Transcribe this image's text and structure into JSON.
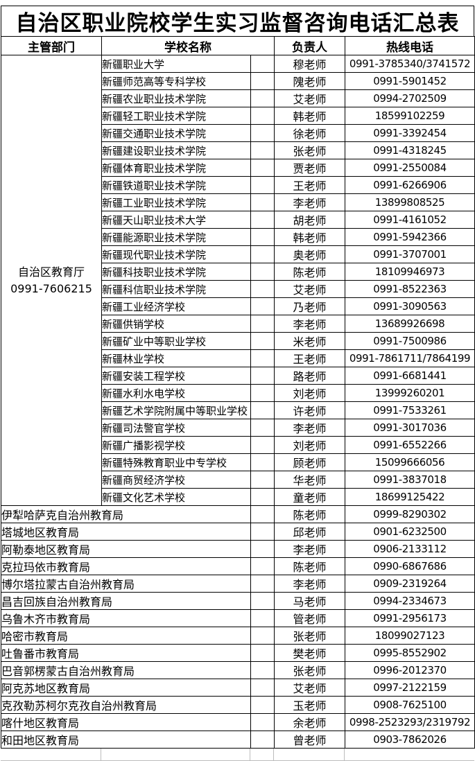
{
  "title": "自治区职业院校学生实习监督咨询电话汇总表",
  "table": {
    "headers": {
      "department": "主管部门",
      "school": "学校名称",
      "contact": "负责人",
      "hotline": "热线电话"
    },
    "department_cell": {
      "name": "自治区教育厅",
      "phone": "0991-7606215"
    },
    "school_rows": [
      {
        "school": "新疆职业大学",
        "contact": "穆老师",
        "hotline": "0991-3785340/3741572"
      },
      {
        "school": "新疆师范高等专科学校",
        "contact": "隗老师",
        "hotline": "0991-5901452"
      },
      {
        "school": "新疆农业职业技术学院",
        "contact": "艾老师",
        "hotline": "0994-2702509"
      },
      {
        "school": "新疆轻工职业技术学院",
        "contact": "韩老师",
        "hotline": "18599102259"
      },
      {
        "school": "新疆交通职业技术学院",
        "contact": "徐老师",
        "hotline": "0991-3392454"
      },
      {
        "school": "新疆建设职业技术学院",
        "contact": "张老师",
        "hotline": "0991-4318245"
      },
      {
        "school": "新疆体育职业技术学院",
        "contact": "贾老师",
        "hotline": "0991-2550084"
      },
      {
        "school": "新疆铁道职业技术学院",
        "contact": "王老师",
        "hotline": "0991-6266906"
      },
      {
        "school": "新疆工业职业技术学院",
        "contact": "李老师",
        "hotline": "13899808525"
      },
      {
        "school": "新疆天山职业技术大学",
        "contact": "胡老师",
        "hotline": "0991-4161052"
      },
      {
        "school": "新疆能源职业技术学院",
        "contact": "韩老师",
        "hotline": "0991-5942366"
      },
      {
        "school": "新疆现代职业技术学院",
        "contact": "奥老师",
        "hotline": "0991-3707001"
      },
      {
        "school": "新疆科技职业技术学院",
        "contact": "陈老师",
        "hotline": "18109946973"
      },
      {
        "school": "新疆科信职业技术学院",
        "contact": "艾老师",
        "hotline": "0991-8522363"
      },
      {
        "school": "新疆工业经济学校",
        "contact": "乃老师",
        "hotline": "0991-3090563"
      },
      {
        "school": "新疆供销学校",
        "contact": "李老师",
        "hotline": "13689926698"
      },
      {
        "school": "新疆矿业中等职业学校",
        "contact": "米老师",
        "hotline": "0991-7500986"
      },
      {
        "school": "新疆林业学校",
        "contact": "王老师",
        "hotline": "0991-7861711/7864199"
      },
      {
        "school": "新疆安装工程学校",
        "contact": "路老师",
        "hotline": "0991-6681441"
      },
      {
        "school": "新疆水利水电学校",
        "contact": "刘老师",
        "hotline": "13999260201"
      },
      {
        "school": "新疆艺术学院附属中等职业学校",
        "contact": "许老师",
        "hotline": "0991-7533261"
      },
      {
        "school": "新疆司法警官学校",
        "contact": "李老师",
        "hotline": "0991-3017036"
      },
      {
        "school": "新疆广播影视学校",
        "contact": "刘老师",
        "hotline": "0991-6552266"
      },
      {
        "school": "新疆特殊教育职业中专学校",
        "contact": "顾老师",
        "hotline": "15099666056"
      },
      {
        "school": "新疆商贸经济学校",
        "contact": "华老师",
        "hotline": "0991-3837018"
      },
      {
        "school": "新疆文化艺术学校",
        "contact": "童老师",
        "hotline": "18699125422"
      }
    ],
    "bureau_rows": [
      {
        "department": "伊犁哈萨克自治州教育局",
        "contact": "陈老师",
        "hotline": "0999-8290302"
      },
      {
        "department": "塔城地区教育局",
        "contact": "邱老师",
        "hotline": "0901-6232500"
      },
      {
        "department": "阿勒泰地区教育局",
        "contact": "李老师",
        "hotline": "0906-2133112"
      },
      {
        "department": "克拉玛依市教育局",
        "contact": "陈老师",
        "hotline": "0990-6867686"
      },
      {
        "department": "博尔塔拉蒙古自治州教育局",
        "contact": "李老师",
        "hotline": "0909-2319264"
      },
      {
        "department": "昌吉回族自治州教育局",
        "contact": "马老师",
        "hotline": "0994-2334673"
      },
      {
        "department": "乌鲁木齐市教育局",
        "contact": "管老师",
        "hotline": "0991-2956173"
      },
      {
        "department": "哈密市教育局",
        "contact": "张老师",
        "hotline": "18099027123"
      },
      {
        "department": "吐鲁番市教育局",
        "contact": "樊老师",
        "hotline": "0995-8552902"
      },
      {
        "department": "巴音郭楞蒙古自治州教育局",
        "contact": "张老师",
        "hotline": "0996-2012370"
      },
      {
        "department": "阿克苏地区教育局",
        "contact": "艾老师",
        "hotline": "0997-2122159"
      },
      {
        "department": "克孜勒苏柯尔克孜自治州教育局",
        "contact": "玉老师",
        "hotline": "0908-7625100"
      },
      {
        "department": "喀什地区教育局",
        "contact": "余老师",
        "hotline": "0998-2523293/2319792"
      },
      {
        "department": "和田地区教育局",
        "contact": "曾老师",
        "hotline": "0903-7862026"
      }
    ]
  },
  "colors": {
    "border": "#000000",
    "gridline": "#bcbcbc",
    "background": "#ffffff",
    "text": "#000000"
  }
}
